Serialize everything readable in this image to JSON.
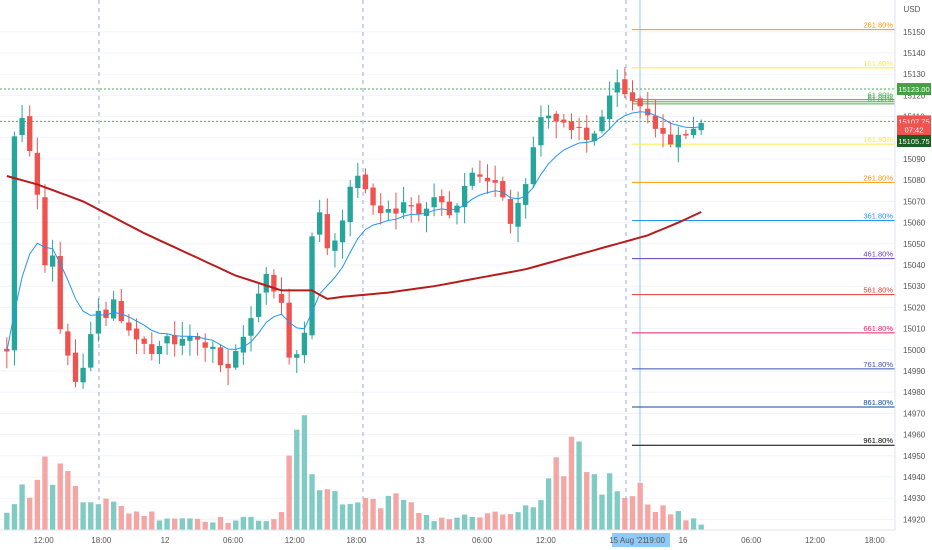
{
  "currency": "USD",
  "colors": {
    "up": "#26a69a",
    "down": "#ef5350",
    "vol_up": "#80cbc4",
    "vol_down": "#f4a6a4",
    "ema_fast": "#2196f3",
    "ema_slow": "#b71c1c",
    "grid_h": "#f0f3fa",
    "vline": "#9fa8da",
    "hline_dotted": "#4caf50",
    "current_price": "#ef5350",
    "level_price": "#43a047",
    "last_green": "#1b5e20",
    "date_badge": "#90caf9"
  },
  "chart_data": {
    "type": "candlestick",
    "yaxis": {
      "min": 14915,
      "max": 15165,
      "ticks": [
        15150,
        15140,
        15130,
        15120,
        15110,
        15100,
        15090,
        15080,
        15070,
        15060,
        15050,
        15040,
        15030,
        15020,
        15010,
        15000,
        14990,
        14980,
        14970,
        14960,
        14950,
        14940,
        14930,
        14920
      ]
    },
    "xaxis": {
      "ticks": [
        {
          "label": "12:00",
          "pos": 0.0488
        },
        {
          "label": "18:00",
          "pos": 0.1132
        },
        {
          "label": "12",
          "pos": 0.1844
        },
        {
          "label": "06:00",
          "pos": 0.2604
        },
        {
          "label": "12:00",
          "pos": 0.3293
        },
        {
          "label": "18:00",
          "pos": 0.3982
        },
        {
          "label": "13",
          "pos": 0.4696
        },
        {
          "label": "06:00",
          "pos": 0.5386
        },
        {
          "label": "12:00",
          "pos": 0.6099
        },
        {
          "label": "19:00",
          "pos": 0.7026
        },
        {
          "label": "16",
          "pos": 0.7632
        },
        {
          "label": "06:00",
          "pos": 0.8393
        },
        {
          "label": "12:00",
          "pos": 0.9106
        },
        {
          "label": "18:00",
          "pos": 0.9773
        }
      ],
      "highlight": "15 Aug '21"
    },
    "anchors": [
      [
        0,
        15000
      ],
      [
        1,
        15100
      ],
      [
        2,
        15108
      ],
      [
        3,
        15095
      ],
      [
        4,
        15072
      ],
      [
        5,
        15040
      ],
      [
        6,
        15045
      ],
      [
        7,
        15010
      ],
      [
        8,
        14998
      ],
      [
        9,
        14985
      ],
      [
        10,
        14990
      ],
      [
        11,
        15006
      ],
      [
        12,
        15020
      ],
      [
        13,
        15016
      ],
      [
        14,
        15022
      ],
      [
        15,
        15015
      ],
      [
        16,
        15010
      ],
      [
        17,
        15005
      ],
      [
        18,
        15002
      ],
      [
        19,
        14998
      ],
      [
        20,
        15000
      ],
      [
        21,
        15006
      ],
      [
        22,
        15003
      ],
      [
        23,
        15004
      ],
      [
        24,
        15006
      ],
      [
        25,
        15004
      ],
      [
        26,
        15002
      ],
      [
        27,
        15000
      ],
      [
        28,
        14993
      ],
      [
        29,
        14990
      ],
      [
        30,
        14998
      ],
      [
        31,
        15006
      ],
      [
        32,
        15015
      ],
      [
        33,
        15028
      ],
      [
        34,
        15036
      ],
      [
        35,
        15028
      ],
      [
        36,
        15022
      ],
      [
        37,
        14995
      ],
      [
        38,
        14998
      ],
      [
        39,
        15010
      ],
      [
        40,
        15055
      ],
      [
        41,
        15064
      ],
      [
        42,
        15048
      ],
      [
        43,
        15050
      ],
      [
        44,
        15062
      ],
      [
        45,
        15076
      ],
      [
        46,
        15082
      ],
      [
        47,
        15075
      ],
      [
        48,
        15070
      ],
      [
        49,
        15065
      ],
      [
        50,
        15067
      ],
      [
        51,
        15065
      ],
      [
        52,
        15070
      ],
      [
        53,
        15068
      ],
      [
        54,
        15066
      ],
      [
        55,
        15065
      ],
      [
        56,
        15070
      ],
      [
        57,
        15068
      ],
      [
        58,
        15063
      ],
      [
        59,
        15067
      ],
      [
        60,
        15076
      ],
      [
        61,
        15082
      ],
      [
        62,
        15080
      ],
      [
        63,
        15078
      ],
      [
        64,
        15080
      ],
      [
        65,
        15073
      ],
      [
        66,
        15060
      ],
      [
        67,
        15070
      ],
      [
        68,
        15080
      ],
      [
        69,
        15095
      ],
      [
        70,
        15110
      ],
      [
        71,
        15112
      ],
      [
        72,
        15108
      ],
      [
        73,
        15106
      ],
      [
        74,
        15102
      ],
      [
        75,
        15104
      ],
      [
        76,
        15099
      ],
      [
        77,
        15103
      ],
      [
        78,
        15110
      ],
      [
        79,
        15118
      ],
      [
        80,
        15125
      ],
      [
        81,
        15120
      ],
      [
        82,
        15118
      ],
      [
        83,
        15115
      ],
      [
        84,
        15112
      ],
      [
        85,
        15106
      ],
      [
        86,
        15100
      ],
      [
        87,
        15098
      ],
      [
        88,
        15100
      ],
      [
        89,
        15102
      ],
      [
        90,
        15104
      ],
      [
        91,
        15108
      ]
    ],
    "volume_peaks": [
      [
        0,
        0.2
      ],
      [
        6,
        0.55
      ],
      [
        10,
        0.35
      ],
      [
        14,
        0.2
      ],
      [
        20,
        0.12
      ],
      [
        30,
        0.08
      ],
      [
        36,
        0.12
      ],
      [
        38,
        0.95
      ],
      [
        40,
        0.55
      ],
      [
        44,
        0.22
      ],
      [
        50,
        0.28
      ],
      [
        56,
        0.1
      ],
      [
        64,
        0.12
      ],
      [
        70,
        0.2
      ],
      [
        74,
        0.75
      ],
      [
        78,
        0.4
      ],
      [
        82,
        0.38
      ],
      [
        86,
        0.18
      ],
      [
        91,
        0.05
      ]
    ],
    "ema_fast_visible": true,
    "ema_slow": [
      [
        0,
        15082
      ],
      [
        4,
        15078
      ],
      [
        10,
        15070
      ],
      [
        18,
        15055
      ],
      [
        24,
        15045
      ],
      [
        30,
        15035
      ],
      [
        36,
        15028
      ],
      [
        40,
        15028
      ],
      [
        42,
        15024
      ],
      [
        44,
        15025
      ],
      [
        50,
        15027
      ],
      [
        56,
        15030
      ],
      [
        62,
        15034
      ],
      [
        68,
        15038
      ],
      [
        74,
        15044
      ],
      [
        80,
        15050
      ],
      [
        84,
        15054
      ],
      [
        88,
        15060
      ],
      [
        91,
        15065
      ]
    ],
    "fib_levels": [
      {
        "label": "261.80%",
        "price": 15151,
        "color": "#ff9800"
      },
      {
        "label": "161.80%",
        "price": 15133,
        "color": "#ffeb3b"
      },
      {
        "label": "61.80%",
        "price": 15118,
        "color": "#4caf50"
      },
      {
        "label": "61.80%",
        "price": 15117,
        "color": "#4caf50"
      },
      {
        "label": "61.80%",
        "price": 15116,
        "color": "#4caf50"
      },
      {
        "label": "161.80%",
        "price": 15097,
        "color": "#ffeb3b"
      },
      {
        "label": "261.80%",
        "price": 15079,
        "color": "#ff9800"
      },
      {
        "label": "361.80%",
        "price": 15061,
        "color": "#2196f3"
      },
      {
        "label": "461.80%",
        "price": 15043,
        "color": "#673ab7"
      },
      {
        "label": "561.80%",
        "price": 15026,
        "color": "#e53935"
      },
      {
        "label": "661.80%",
        "price": 15008,
        "color": "#e91e63"
      },
      {
        "label": "761.80%",
        "price": 14991,
        "color": "#3f51b5"
      },
      {
        "label": "861.80%",
        "price": 14973,
        "color": "#0d47a1"
      },
      {
        "label": "961.80%",
        "price": 14955,
        "color": "#000000"
      }
    ],
    "hlines_dotted": [
      15123,
      15107.75
    ],
    "price_labels": [
      {
        "text": "15123.00",
        "price": 15123,
        "color": "#43a047"
      },
      {
        "text": "15107.75",
        "price": 15107.75,
        "color": "#ef5350"
      },
      {
        "text": "07:42",
        "price": 15104,
        "color": "#ef5350"
      },
      {
        "text": "15105.75",
        "price": 15098.5,
        "color": "#1b5e20"
      }
    ],
    "date_badge_label": "15 Aug '21",
    "time_badge_label": "19:00"
  }
}
